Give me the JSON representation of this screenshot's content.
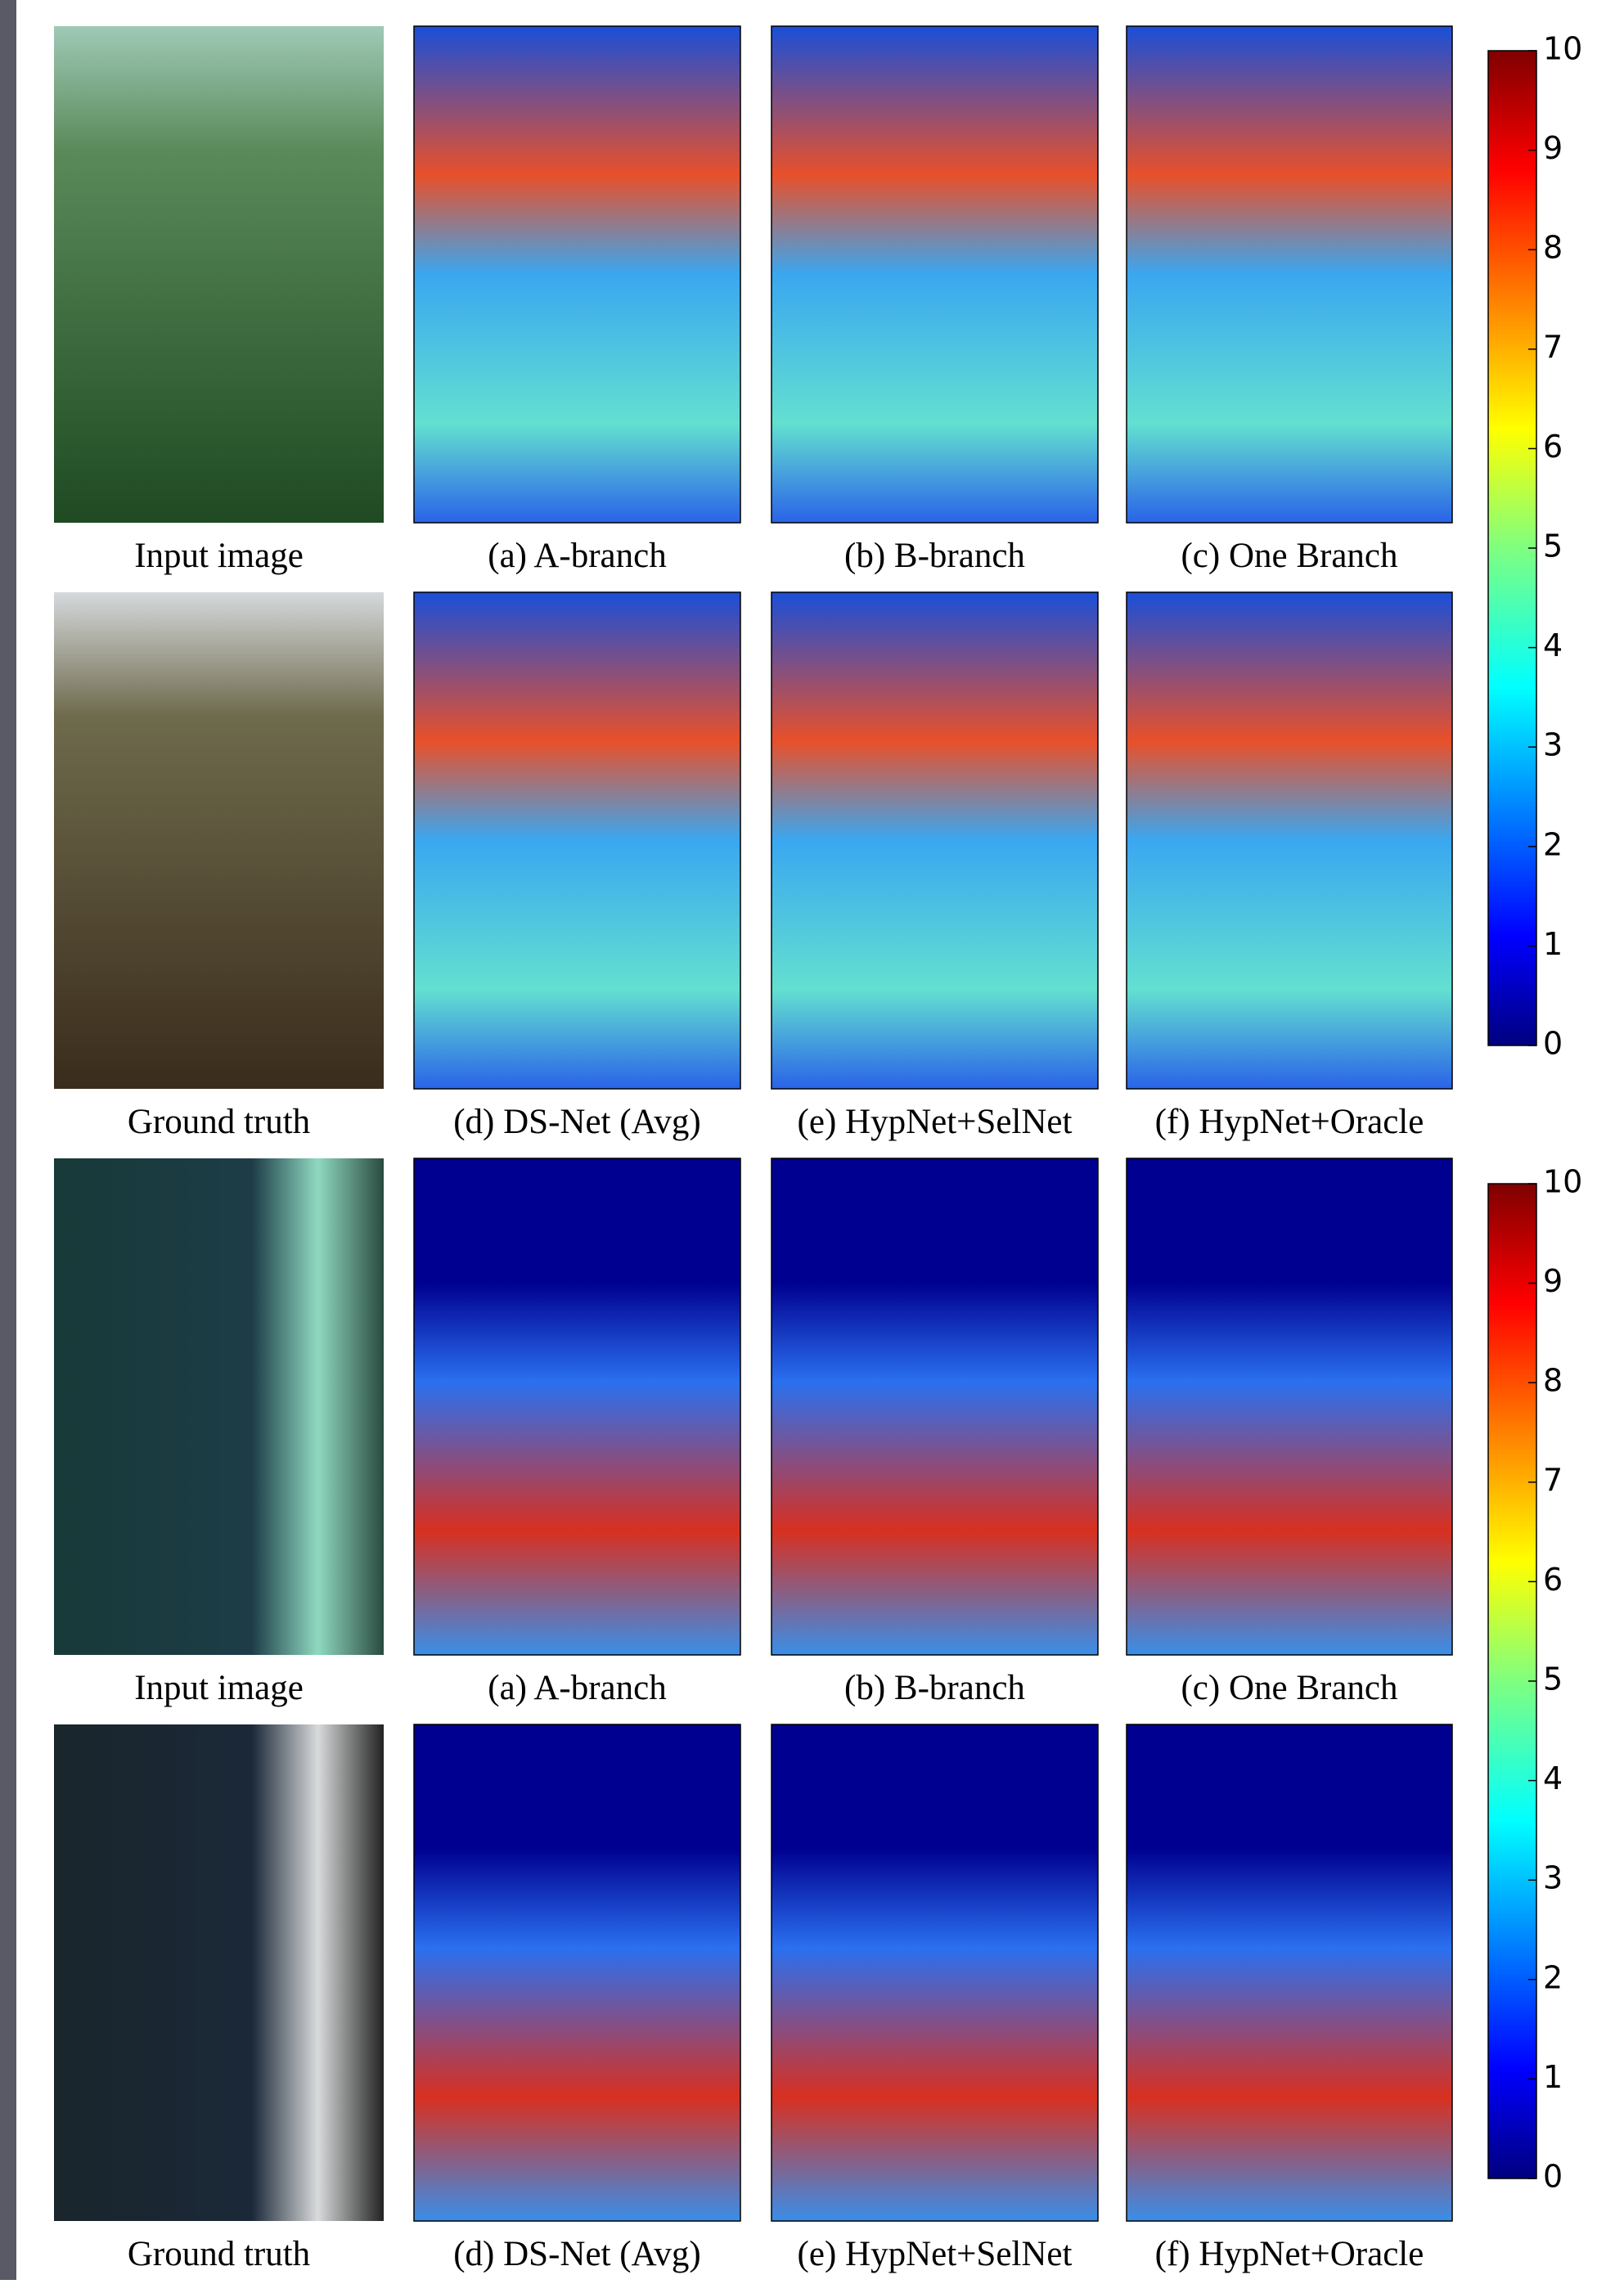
{
  "figure": {
    "blocks": [
      {
        "rows": [
          {
            "captions": [
              "Input image",
              "(a) A-branch",
              "(b) B-branch",
              "(c) One Branch"
            ]
          },
          {
            "captions": [
              "Ground truth",
              "(d) DS-Net (Avg)",
              "(e) HypNet+SelNet",
              "(f) HypNet+Oracle"
            ]
          }
        ],
        "colorbar": {
          "ticks": [
            0,
            1,
            2,
            3,
            4,
            5,
            6,
            7,
            8,
            9,
            10
          ]
        }
      },
      {
        "rows": [
          {
            "captions": [
              "Input image",
              "(a) A-branch",
              "(b) B-branch",
              "(c) One Branch"
            ]
          },
          {
            "captions": [
              "Ground truth",
              "(d) DS-Net (Avg)",
              "(e) HypNet+SelNet",
              "(f) HypNet+Oracle"
            ]
          }
        ],
        "colorbar": {
          "ticks": [
            0,
            1,
            2,
            3,
            4,
            5,
            6,
            7,
            8,
            9,
            10
          ]
        }
      }
    ]
  }
}
